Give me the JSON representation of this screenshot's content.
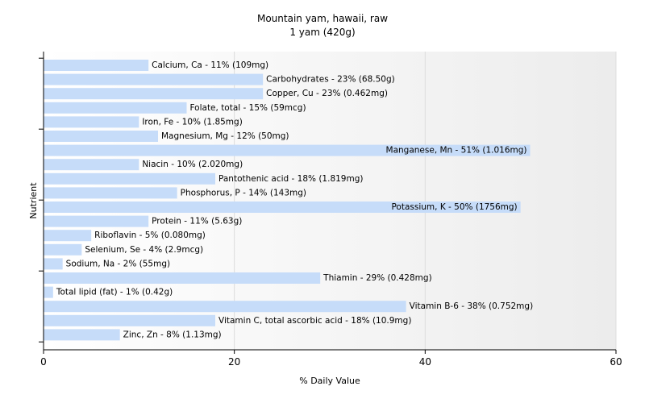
{
  "chart_data": {
    "type": "bar",
    "orientation": "horizontal",
    "title": "Mountain yam, hawaii, raw",
    "subtitle": "1 yam (420g)",
    "xlabel": "% Daily Value",
    "ylabel": "Nutrient",
    "xlim": [
      0,
      60
    ],
    "xticks": [
      0,
      20,
      40,
      60
    ],
    "grid": true,
    "legend": "none",
    "bar_color": "#c6dcf9",
    "categories": [
      "Calcium, Ca",
      "Carbohydrates",
      "Copper, Cu",
      "Folate, total",
      "Iron, Fe",
      "Magnesium, Mg",
      "Manganese, Mn",
      "Niacin",
      "Pantothenic acid",
      "Phosphorus, P",
      "Potassium, K",
      "Protein",
      "Riboflavin",
      "Selenium, Se",
      "Sodium, Na",
      "Thiamin",
      "Total lipid (fat)",
      "Vitamin B-6",
      "Vitamin C, total ascorbic acid",
      "Zinc, Zn"
    ],
    "values": [
      11,
      23,
      23,
      15,
      10,
      12,
      51,
      10,
      18,
      14,
      50,
      11,
      5,
      4,
      2,
      29,
      1,
      38,
      18,
      8
    ],
    "labels": [
      "Calcium, Ca - 11% (109mg)",
      "Carbohydrates - 23% (68.50g)",
      "Copper, Cu - 23% (0.462mg)",
      "Folate, total - 15% (59mcg)",
      "Iron, Fe - 10% (1.85mg)",
      "Magnesium, Mg - 12% (50mg)",
      "Manganese, Mn - 51% (1.016mg)",
      "Niacin - 10% (2.020mg)",
      "Pantothenic acid - 18% (1.819mg)",
      "Phosphorus, P - 14% (143mg)",
      "Potassium, K - 50% (1756mg)",
      "Protein - 11% (5.63g)",
      "Riboflavin - 5% (0.080mg)",
      "Selenium, Se - 4% (2.9mcg)",
      "Sodium, Na - 2% (55mg)",
      "Thiamin - 29% (0.428mg)",
      "Total lipid (fat) - 1% (0.42g)",
      "Vitamin B-6 - 38% (0.752mg)",
      "Vitamin C, total ascorbic acid - 18% (10.9mg)",
      "Zinc, Zn - 8% (1.13mg)"
    ]
  }
}
